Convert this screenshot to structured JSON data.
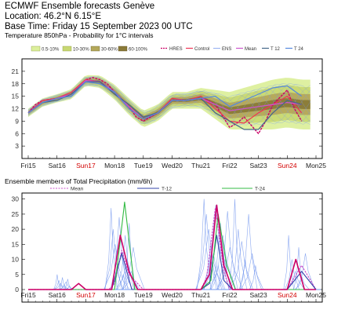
{
  "header": {
    "line1": "ECMWF Ensemble forecasts Genève",
    "line2": "Location:  46.2°N 6.15°E",
    "line3": "Base Time: Friday 15 September 2023 00 UTC"
  },
  "colors": {
    "band_5_10": "#dcef9c",
    "band_10_30": "#c8d872",
    "band_30_60": "#b4a85a",
    "band_60_100": "#8a7a38",
    "hres": "#cc0066",
    "control": "#ee3355",
    "ens": "#7799ee",
    "mean": "#cc55cc",
    "t12": "#446688",
    "t24": "#5588dd",
    "precip_t12": "#3344aa",
    "precip_t24": "#33bb44",
    "sunday": "#d20000"
  },
  "days": [
    "Fri15",
    "Sat16",
    "Sun17",
    "Mon18",
    "Tue19",
    "Wed20",
    "Thu21",
    "Fri22",
    "Sat23",
    "Sun24",
    "Mon25"
  ],
  "chart_data": [
    {
      "type": "area",
      "title": "Temperature 850hPa - Probability for 1°C intervals",
      "ylabel": "",
      "ylim": [
        0,
        24
      ],
      "yticks": [
        3,
        6,
        9,
        12,
        15,
        18,
        21
      ],
      "xlim": [
        0,
        10
      ],
      "grid": false,
      "legend_placement": "top",
      "legend": {
        "probability_bands": [
          "0.5-10%",
          "10-30%",
          "30-60%",
          "60-100%"
        ],
        "lines": [
          "HRES",
          "Control",
          "ENS",
          "Mean",
          "T 12",
          "T 24"
        ]
      },
      "series": [
        {
          "name": "HRES",
          "color_key": "hres",
          "x": [
            0,
            0.25,
            0.5,
            1,
            1.5,
            2,
            2.25,
            2.5,
            2.75,
            3,
            3.25,
            3.5,
            3.75,
            4,
            4.5,
            5,
            5.5,
            6,
            6.25,
            6.5,
            7,
            7.25,
            7.5,
            8,
            8.25,
            8.5,
            9,
            9.25,
            9.5
          ],
          "y": [
            11,
            13,
            14,
            14.5,
            15.5,
            19,
            19.5,
            19,
            18,
            16,
            14,
            12.5,
            10,
            9,
            11,
            14,
            14,
            14.5,
            14,
            13,
            7.5,
            8.5,
            10,
            6,
            9,
            13,
            16.5,
            12,
            9
          ]
        },
        {
          "name": "Control",
          "color_key": "control",
          "x": [
            0,
            0.5,
            1,
            1.5,
            2,
            2.5,
            3,
            3.5,
            4,
            4.5,
            5,
            5.5,
            6,
            6.5,
            7,
            7.5,
            8,
            8.5,
            9,
            9.5
          ],
          "y": [
            11,
            14,
            14.5,
            16,
            19,
            18.5,
            16,
            12.5,
            9.5,
            11,
            14.5,
            14,
            15,
            12,
            9,
            8.5,
            11,
            13,
            15,
            11
          ]
        },
        {
          "name": "Mean",
          "color_key": "mean",
          "x": [
            0,
            0.5,
            1,
            1.5,
            2,
            2.5,
            3,
            3.5,
            4,
            4.5,
            5,
            5.5,
            6,
            6.5,
            7,
            7.5,
            8,
            8.5,
            9,
            9.5
          ],
          "y": [
            11,
            13.5,
            14.5,
            15.5,
            18.8,
            18.5,
            16,
            12.5,
            9.5,
            11,
            14,
            14,
            14.5,
            13,
            11.5,
            12,
            12.5,
            13,
            13.5,
            13
          ]
        },
        {
          "name": "T 12",
          "color_key": "t12",
          "x": [
            0,
            0.5,
            1,
            1.5,
            2,
            2.5,
            3,
            3.5,
            4,
            4.5,
            5,
            5.5,
            6,
            6.5,
            7,
            7.5,
            8,
            8.5,
            9,
            9.5
          ],
          "y": [
            11,
            13.5,
            14,
            15.5,
            18.5,
            18.5,
            15.5,
            13,
            10,
            11,
            14,
            14,
            14.5,
            11,
            9,
            7,
            7,
            11,
            14,
            13
          ]
        },
        {
          "name": "T 24",
          "color_key": "t24",
          "x": [
            0,
            0.5,
            1,
            1.5,
            2,
            2.5,
            3,
            3.5,
            4,
            4.5,
            5,
            5.5,
            6,
            6.5,
            7,
            7.5,
            8,
            8.5,
            9,
            9.5
          ],
          "y": [
            11,
            13.5,
            14.5,
            15,
            18.5,
            18,
            16,
            12,
            9.5,
            11,
            14,
            14,
            14.5,
            15,
            12.5,
            14,
            15.5,
            17,
            17.5,
            15
          ]
        }
      ],
      "ensemble_band_center": [
        11,
        13.5,
        14.5,
        15.5,
        18.8,
        18.5,
        16,
        12.5,
        9.5,
        11,
        14,
        14,
        14.5,
        13,
        11.5,
        12,
        12.5,
        13,
        13.5,
        13
      ],
      "ensemble_band_halfwidth": [
        1,
        1,
        1,
        1.2,
        1.3,
        1.5,
        1.8,
        2,
        2,
        2,
        2,
        2,
        2.5,
        3.5,
        4.5,
        5,
        5.5,
        6,
        6,
        6
      ]
    },
    {
      "type": "line",
      "title": "Ensemble members of Total Precipitation (mm/6h)",
      "ylabel": "",
      "ylim": [
        0,
        32
      ],
      "yticks": [
        0,
        5,
        10,
        15,
        20,
        25,
        30
      ],
      "xlim": [
        0,
        10
      ],
      "grid": false,
      "legend_placement": "top",
      "legend": [
        "Mean",
        "T-12",
        "T-24"
      ],
      "series": [
        {
          "name": "Mean",
          "color_key": "mean",
          "x": [
            0,
            1.5,
            2.8,
            3,
            3.25,
            3.5,
            4,
            6,
            6.2,
            6.5,
            6.8,
            7,
            9,
            9.5,
            10
          ],
          "y": [
            0,
            0,
            0,
            2,
            13,
            5,
            0,
            0,
            4,
            27,
            6,
            0,
            0,
            8,
            0
          ]
        },
        {
          "name": "T-12",
          "color_key": "precip_t12",
          "x": [
            0,
            2.9,
            3.25,
            3.6,
            6,
            6.3,
            6.55,
            6.8,
            7.1,
            9,
            9.5,
            10
          ],
          "y": [
            0,
            0,
            12,
            0,
            0,
            2,
            18,
            3,
            0,
            0,
            6,
            0
          ]
        },
        {
          "name": "T-24",
          "color_key": "precip_t24",
          "x": [
            0,
            3,
            3.35,
            3.7,
            6,
            6.35,
            6.6,
            6.9,
            7.2,
            10
          ],
          "y": [
            0,
            0,
            29,
            0,
            0,
            3,
            25,
            8,
            0,
            0
          ]
        },
        {
          "name": "",
          "color_key": "hres",
          "x": [
            0,
            1.5,
            1.75,
            2,
            2.9,
            3.2,
            3.5,
            3.8,
            6,
            6.3,
            6.55,
            6.8,
            7.1,
            9,
            9.3,
            9.6,
            10
          ],
          "y": [
            0,
            0,
            2,
            0,
            0,
            18,
            6,
            0,
            0,
            5,
            28,
            8,
            0,
            0,
            10,
            0,
            0
          ]
        }
      ],
      "ensemble_member_peaks": [
        {
          "center": 1.25,
          "width": 0.35,
          "heights": [
            5,
            3,
            2,
            4,
            1.5,
            2.5,
            3.5,
            1
          ]
        },
        {
          "center": 3.3,
          "width": 0.6,
          "heights": [
            27,
            20,
            15,
            8,
            24,
            12,
            5,
            18,
            10,
            22,
            6,
            14
          ]
        },
        {
          "center": 6.6,
          "width": 0.7,
          "heights": [
            30,
            25,
            20,
            15,
            12,
            28,
            8,
            22,
            18,
            10,
            26,
            14
          ]
        },
        {
          "center": 7.6,
          "width": 0.6,
          "heights": [
            30,
            20,
            16,
            10,
            25,
            12,
            8
          ]
        },
        {
          "center": 9.4,
          "width": 0.5,
          "heights": [
            18,
            10,
            6,
            14,
            4,
            12
          ]
        }
      ]
    }
  ],
  "legend_labels": {
    "p1": "0.5-10%",
    "p2": "10-30%",
    "p3": "30-60%",
    "p4": "60-100%",
    "hres": "HRES",
    "control": "Control",
    "ens": "ENS",
    "mean": "Mean",
    "t12": "T 12",
    "t24": "T 24",
    "pmean": "Mean",
    "pt12": "T-12",
    "pt24": "T-24"
  }
}
